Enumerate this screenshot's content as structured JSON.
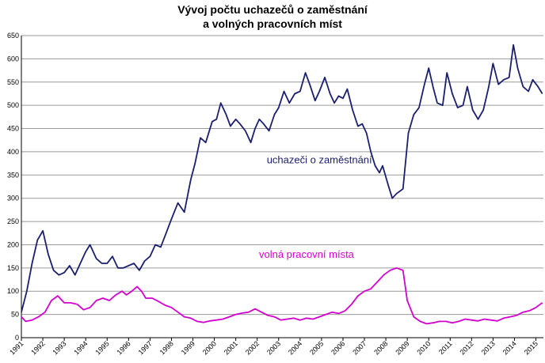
{
  "chart_data": {
    "type": "line",
    "title_line1": "Vývoj počtu uchazečů o zaměstnání",
    "title_line2": "a volných pracovních míst",
    "ylim": [
      0,
      650
    ],
    "yticks": [
      0,
      50,
      100,
      150,
      200,
      250,
      300,
      350,
      400,
      450,
      500,
      550,
      600,
      650
    ],
    "xlim": [
      1991.0,
      2015.35
    ],
    "x_tick_labels": [
      "1991",
      "1992",
      "1993",
      "1994",
      "1995",
      "1996",
      "1997",
      "1998",
      "1999",
      "2000",
      "2001",
      "2002",
      "2003",
      "2004",
      "2005",
      "2006",
      "2007",
      "2008",
      "2009",
      "2010",
      "2011",
      "2012",
      "2013",
      "2014",
      "2015"
    ],
    "grid": "horizontal",
    "series": [
      {
        "name": "uchazeči o zaměstnání",
        "color": "#1a1f6e",
        "points": [
          [
            1991.0,
            55
          ],
          [
            1991.25,
            100
          ],
          [
            1991.5,
            160
          ],
          [
            1991.75,
            210
          ],
          [
            1992.0,
            230
          ],
          [
            1992.25,
            180
          ],
          [
            1992.5,
            145
          ],
          [
            1992.75,
            135
          ],
          [
            1993.0,
            140
          ],
          [
            1993.25,
            155
          ],
          [
            1993.5,
            135
          ],
          [
            1993.75,
            160
          ],
          [
            1994.0,
            185
          ],
          [
            1994.2,
            200
          ],
          [
            1994.5,
            170
          ],
          [
            1994.75,
            160
          ],
          [
            1995.0,
            160
          ],
          [
            1995.25,
            175
          ],
          [
            1995.5,
            150
          ],
          [
            1995.75,
            150
          ],
          [
            1996.0,
            155
          ],
          [
            1996.25,
            160
          ],
          [
            1996.5,
            145
          ],
          [
            1996.75,
            165
          ],
          [
            1997.0,
            175
          ],
          [
            1997.25,
            200
          ],
          [
            1997.5,
            195
          ],
          [
            1997.75,
            225
          ],
          [
            1998.0,
            255
          ],
          [
            1998.3,
            290
          ],
          [
            1998.6,
            270
          ],
          [
            1998.9,
            340
          ],
          [
            1999.1,
            375
          ],
          [
            1999.35,
            430
          ],
          [
            1999.6,
            420
          ],
          [
            1999.9,
            465
          ],
          [
            2000.1,
            470
          ],
          [
            2000.3,
            505
          ],
          [
            2000.55,
            480
          ],
          [
            2000.75,
            455
          ],
          [
            2001.0,
            470
          ],
          [
            2001.2,
            460
          ],
          [
            2001.45,
            445
          ],
          [
            2001.7,
            420
          ],
          [
            2001.9,
            450
          ],
          [
            2002.1,
            470
          ],
          [
            2002.3,
            460
          ],
          [
            2002.55,
            445
          ],
          [
            2002.8,
            480
          ],
          [
            2003.0,
            495
          ],
          [
            2003.25,
            530
          ],
          [
            2003.5,
            505
          ],
          [
            2003.75,
            525
          ],
          [
            2004.0,
            530
          ],
          [
            2004.25,
            570
          ],
          [
            2004.45,
            545
          ],
          [
            2004.7,
            510
          ],
          [
            2004.9,
            530
          ],
          [
            2005.15,
            560
          ],
          [
            2005.4,
            525
          ],
          [
            2005.6,
            505
          ],
          [
            2005.8,
            520
          ],
          [
            2006.0,
            515
          ],
          [
            2006.2,
            535
          ],
          [
            2006.45,
            490
          ],
          [
            2006.7,
            455
          ],
          [
            2006.9,
            460
          ],
          [
            2007.1,
            440
          ],
          [
            2007.3,
            400
          ],
          [
            2007.5,
            370
          ],
          [
            2007.7,
            355
          ],
          [
            2007.85,
            370
          ],
          [
            2008.1,
            330
          ],
          [
            2008.3,
            300
          ],
          [
            2008.5,
            310
          ],
          [
            2008.8,
            320
          ],
          [
            2009.05,
            440
          ],
          [
            2009.3,
            480
          ],
          [
            2009.55,
            495
          ],
          [
            2009.8,
            545
          ],
          [
            2010.0,
            580
          ],
          [
            2010.2,
            540
          ],
          [
            2010.4,
            505
          ],
          [
            2010.65,
            500
          ],
          [
            2010.85,
            570
          ],
          [
            2011.1,
            525
          ],
          [
            2011.35,
            495
          ],
          [
            2011.6,
            500
          ],
          [
            2011.8,
            540
          ],
          [
            2012.05,
            490
          ],
          [
            2012.3,
            470
          ],
          [
            2012.55,
            490
          ],
          [
            2012.8,
            540
          ],
          [
            2013.0,
            590
          ],
          [
            2013.25,
            545
          ],
          [
            2013.5,
            555
          ],
          [
            2013.75,
            560
          ],
          [
            2013.95,
            630
          ],
          [
            2014.15,
            580
          ],
          [
            2014.4,
            540
          ],
          [
            2014.65,
            530
          ],
          [
            2014.85,
            555
          ],
          [
            2015.1,
            540
          ],
          [
            2015.3,
            525
          ]
        ]
      },
      {
        "name": "volná pracovní místa",
        "color": "#d400d0",
        "points": [
          [
            1991.0,
            45
          ],
          [
            1991.2,
            35
          ],
          [
            1991.5,
            38
          ],
          [
            1991.8,
            45
          ],
          [
            1992.1,
            55
          ],
          [
            1992.4,
            80
          ],
          [
            1992.7,
            90
          ],
          [
            1993.0,
            75
          ],
          [
            1993.3,
            75
          ],
          [
            1993.6,
            72
          ],
          [
            1993.9,
            60
          ],
          [
            1994.2,
            65
          ],
          [
            1994.5,
            80
          ],
          [
            1994.8,
            85
          ],
          [
            1995.1,
            80
          ],
          [
            1995.4,
            92
          ],
          [
            1995.7,
            100
          ],
          [
            1995.9,
            92
          ],
          [
            1996.15,
            100
          ],
          [
            1996.4,
            110
          ],
          [
            1996.6,
            100
          ],
          [
            1996.8,
            85
          ],
          [
            1997.1,
            85
          ],
          [
            1997.4,
            78
          ],
          [
            1997.7,
            70
          ],
          [
            1998.0,
            65
          ],
          [
            1998.3,
            55
          ],
          [
            1998.6,
            45
          ],
          [
            1998.9,
            42
          ],
          [
            1999.2,
            35
          ],
          [
            1999.5,
            33
          ],
          [
            1999.8,
            36
          ],
          [
            2000.1,
            38
          ],
          [
            2000.4,
            40
          ],
          [
            2000.7,
            45
          ],
          [
            2001.0,
            50
          ],
          [
            2001.3,
            53
          ],
          [
            2001.6,
            55
          ],
          [
            2001.9,
            62
          ],
          [
            2002.2,
            55
          ],
          [
            2002.5,
            48
          ],
          [
            2002.8,
            45
          ],
          [
            2003.1,
            38
          ],
          [
            2003.4,
            40
          ],
          [
            2003.7,
            42
          ],
          [
            2004.0,
            38
          ],
          [
            2004.3,
            42
          ],
          [
            2004.6,
            40
          ],
          [
            2004.9,
            45
          ],
          [
            2005.2,
            50
          ],
          [
            2005.5,
            55
          ],
          [
            2005.8,
            52
          ],
          [
            2006.1,
            58
          ],
          [
            2006.4,
            72
          ],
          [
            2006.7,
            90
          ],
          [
            2007.0,
            100
          ],
          [
            2007.3,
            105
          ],
          [
            2007.6,
            120
          ],
          [
            2007.9,
            135
          ],
          [
            2008.2,
            145
          ],
          [
            2008.5,
            150
          ],
          [
            2008.8,
            145
          ],
          [
            2009.0,
            80
          ],
          [
            2009.3,
            45
          ],
          [
            2009.6,
            35
          ],
          [
            2009.9,
            30
          ],
          [
            2010.2,
            32
          ],
          [
            2010.5,
            35
          ],
          [
            2010.8,
            35
          ],
          [
            2011.1,
            32
          ],
          [
            2011.4,
            35
          ],
          [
            2011.7,
            40
          ],
          [
            2012.0,
            38
          ],
          [
            2012.3,
            36
          ],
          [
            2012.6,
            40
          ],
          [
            2012.9,
            38
          ],
          [
            2013.2,
            36
          ],
          [
            2013.5,
            42
          ],
          [
            2013.8,
            45
          ],
          [
            2014.1,
            48
          ],
          [
            2014.4,
            55
          ],
          [
            2014.7,
            58
          ],
          [
            2015.0,
            65
          ],
          [
            2015.3,
            75
          ]
        ]
      }
    ],
    "annotations": [
      {
        "text": "uchazeči o zaměstnání",
        "series": 0,
        "at_x": 2004.9,
        "at_y": 375
      },
      {
        "text": "volná pracovní místa",
        "series": 1,
        "at_x": 2004.3,
        "at_y": 172
      }
    ]
  }
}
